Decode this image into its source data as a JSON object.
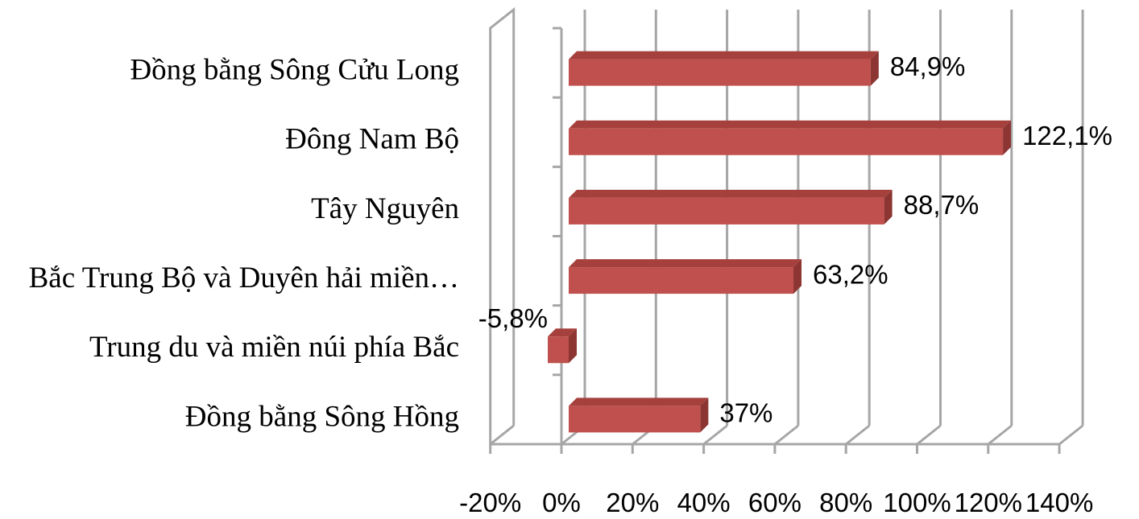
{
  "chart_data": {
    "type": "bar",
    "orientation": "horizontal",
    "style": "3d",
    "title": "",
    "xlabel": "",
    "ylabel": "",
    "categories": [
      "Đồng bằng Sông Cửu Long",
      "Đông Nam Bộ",
      "Tây Nguyên",
      "Bắc Trung Bộ và Duyên hải miền…",
      "Trung du và miền núi phía Bắc",
      "Đồng bằng Sông Hồng"
    ],
    "values": [
      84.9,
      122.1,
      88.7,
      63.2,
      -5.8,
      37
    ],
    "data_labels": [
      "84,9%",
      "122,1%",
      "88,7%",
      "63,2%",
      "-5,8%",
      "37%"
    ],
    "xlim": [
      -20,
      140
    ],
    "x_ticks": [
      -20,
      0,
      20,
      40,
      60,
      80,
      100,
      120,
      140
    ],
    "x_tick_labels": [
      "-20%",
      "0%",
      "20%",
      "40%",
      "60%",
      "80%",
      "100%",
      "120%",
      "140%"
    ],
    "grid": true,
    "legend": "none",
    "colors": {
      "bar": "#c0504d",
      "bar_top": "#a5403d",
      "bar_side": "#8c3533",
      "grid": "#a6a6a6"
    }
  }
}
